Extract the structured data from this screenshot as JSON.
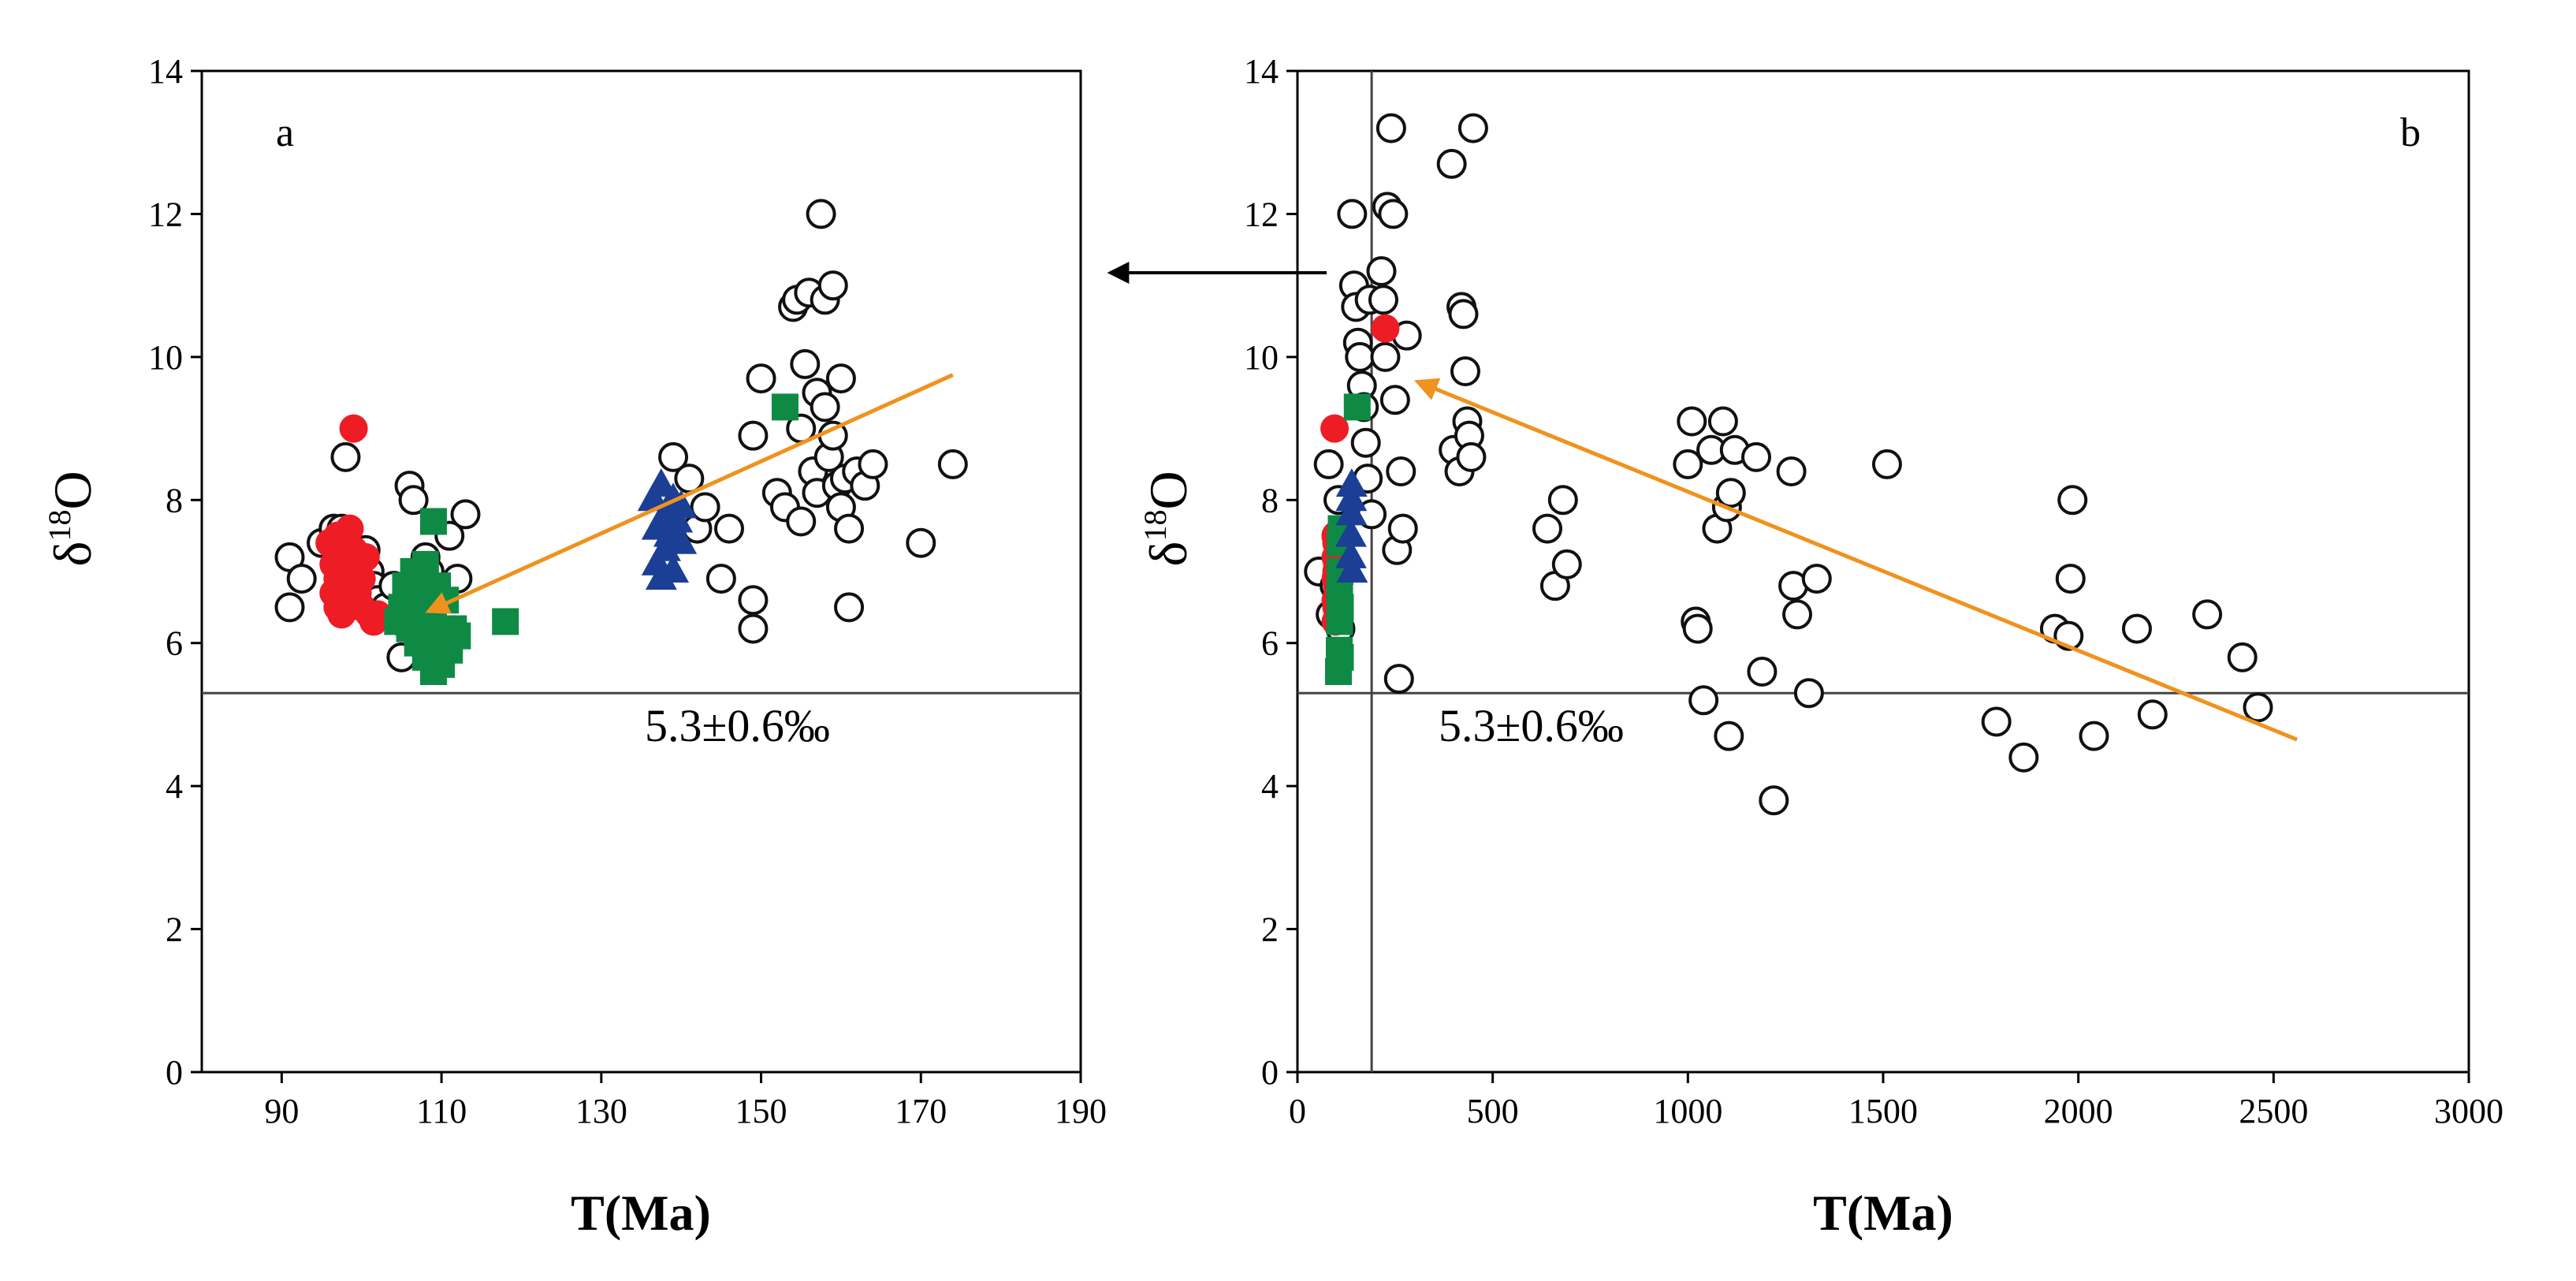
{
  "figure": {
    "reference_label": "5.3±0.6‰",
    "y_label_main": "δ",
    "y_label_sup": "18",
    "y_label_tail": "O",
    "colors": {
      "axis": "#000000",
      "ref_line": "#444444",
      "trend_arrow": "#F0921E",
      "open_circle_stroke": "#111111",
      "red_circle": "#EE1C25",
      "green_square": "#0E8A45",
      "blue_triangle": "#1B3F94"
    }
  },
  "chart_data": [
    {
      "type": "scatter",
      "panel": "a",
      "title": "",
      "xlabel": "T(Ma)",
      "ylabel": "δ18O",
      "xlim": [
        80,
        190
      ],
      "ylim": [
        0,
        14
      ],
      "xticks": [
        90,
        110,
        130,
        150,
        170,
        190
      ],
      "yticks": [
        0,
        2,
        4,
        6,
        8,
        10,
        12,
        14
      ],
      "reference_line": {
        "y": 5.3,
        "label": "5.3±0.6‰"
      },
      "trend_arrow": {
        "from": [
          174,
          9.75
        ],
        "to": [
          108.5,
          6.45
        ]
      },
      "series": [
        {
          "name": "open circles",
          "marker": "open-circle",
          "points": [
            [
              91,
              7.2
            ],
            [
              91,
              6.5
            ],
            [
              92.5,
              6.9
            ],
            [
              95,
              7.4
            ],
            [
              96.5,
              7.6
            ],
            [
              97.5,
              7.6
            ],
            [
              98,
              8.6
            ],
            [
              98,
              6.6
            ],
            [
              99,
              7.0
            ],
            [
              100.5,
              7.3
            ],
            [
              101,
              7.0
            ],
            [
              101.5,
              6.8
            ],
            [
              102,
              6.6
            ],
            [
              103,
              6.5
            ],
            [
              104,
              6.8
            ],
            [
              105,
              6.3
            ],
            [
              105,
              5.8
            ],
            [
              106,
              8.2
            ],
            [
              106.5,
              8.0
            ],
            [
              107,
              6.5
            ],
            [
              107.5,
              6.2
            ],
            [
              108,
              7.2
            ],
            [
              108.5,
              7.0
            ],
            [
              109,
              6.7
            ],
            [
              111,
              7.5
            ],
            [
              112,
              6.9
            ],
            [
              113,
              7.8
            ],
            [
              139,
              8.6
            ],
            [
              141,
              8.3
            ],
            [
              142,
              7.6
            ],
            [
              143,
              7.9
            ],
            [
              145,
              6.9
            ],
            [
              146,
              7.6
            ],
            [
              149,
              6.6
            ],
            [
              149,
              6.2
            ],
            [
              149,
              8.9
            ],
            [
              150,
              9.7
            ],
            [
              152,
              8.1
            ],
            [
              153,
              7.9
            ],
            [
              154,
              10.7
            ],
            [
              154.5,
              10.8
            ],
            [
              155,
              7.7
            ],
            [
              155,
              9.0
            ],
            [
              155.5,
              9.9
            ],
            [
              156,
              10.9
            ],
            [
              156.5,
              8.4
            ],
            [
              157,
              8.1
            ],
            [
              157,
              9.5
            ],
            [
              157.5,
              12.0
            ],
            [
              158,
              10.8
            ],
            [
              158,
              9.3
            ],
            [
              158.5,
              8.6
            ],
            [
              159,
              11.0
            ],
            [
              159,
              8.9
            ],
            [
              159.5,
              8.2
            ],
            [
              160,
              7.9
            ],
            [
              160,
              9.7
            ],
            [
              160.5,
              8.3
            ],
            [
              161,
              7.6
            ],
            [
              161,
              6.5
            ],
            [
              162,
              8.4
            ],
            [
              163,
              8.2
            ],
            [
              164,
              8.5
            ],
            [
              170,
              7.4
            ],
            [
              174,
              8.5
            ]
          ]
        },
        {
          "name": "red circles",
          "marker": "filled-circle",
          "points": [
            [
              96,
              7.4
            ],
            [
              96.5,
              7.1
            ],
            [
              96.5,
              6.7
            ],
            [
              97,
              7.5
            ],
            [
              97,
              6.9
            ],
            [
              97,
              6.5
            ],
            [
              97.5,
              7.3
            ],
            [
              97.5,
              6.4
            ],
            [
              98,
              7.2
            ],
            [
              98,
              6.8
            ],
            [
              98,
              6.5
            ],
            [
              98.5,
              7.6
            ],
            [
              98.5,
              7.0
            ],
            [
              99,
              7.3
            ],
            [
              99,
              6.6
            ],
            [
              99,
              9.0
            ],
            [
              99.5,
              7.1
            ],
            [
              99.5,
              6.7
            ],
            [
              100,
              6.9
            ],
            [
              100,
              6.5
            ],
            [
              100.5,
              7.2
            ],
            [
              101,
              6.4
            ],
            [
              101.5,
              6.3
            ],
            [
              102,
              6.4
            ]
          ]
        },
        {
          "name": "green squares",
          "marker": "filled-square",
          "points": [
            [
              104.5,
              6.3
            ],
            [
              105,
              6.5
            ],
            [
              105.5,
              6.8
            ],
            [
              106,
              6.2
            ],
            [
              106.5,
              7.0
            ],
            [
              107,
              6.4
            ],
            [
              107,
              6.0
            ],
            [
              107.5,
              6.7
            ],
            [
              107.5,
              6.1
            ],
            [
              108,
              7.1
            ],
            [
              108,
              5.8
            ],
            [
              108.5,
              6.5
            ],
            [
              108.5,
              6.0
            ],
            [
              109,
              7.7
            ],
            [
              109,
              6.3
            ],
            [
              109,
              5.6
            ],
            [
              109.5,
              6.8
            ],
            [
              110,
              6.2
            ],
            [
              110,
              5.7
            ],
            [
              110.5,
              6.6
            ],
            [
              111,
              5.9
            ],
            [
              111.5,
              6.2
            ],
            [
              112,
              6.1
            ],
            [
              118,
              6.3
            ],
            [
              153,
              9.3
            ]
          ]
        },
        {
          "name": "blue triangles",
          "marker": "filled-triangle",
          "points": [
            [
              136.5,
              8.0
            ],
            [
              137,
              7.6
            ],
            [
              137,
              7.1
            ],
            [
              137.5,
              8.2
            ],
            [
              137.5,
              6.9
            ],
            [
              138,
              7.8
            ],
            [
              138,
              7.3
            ],
            [
              138.5,
              7.5
            ],
            [
              139,
              8.0
            ],
            [
              139,
              7.0
            ],
            [
              139.5,
              7.7
            ],
            [
              140,
              7.4
            ],
            [
              140,
              7.9
            ]
          ]
        }
      ]
    },
    {
      "type": "scatter",
      "panel": "b",
      "title": "",
      "xlabel": "T(Ma)",
      "ylabel": "δ18O",
      "xlim": [
        0,
        3000
      ],
      "ylim": [
        0,
        14
      ],
      "xticks": [
        0,
        500,
        1000,
        1500,
        2000,
        2500,
        3000
      ],
      "yticks": [
        0,
        2,
        4,
        6,
        8,
        10,
        12,
        14
      ],
      "reference_line": {
        "y": 5.3,
        "label": "5.3±0.6‰"
      },
      "vertical_line": {
        "x": 190
      },
      "trend_arrow": {
        "from": [
          2560,
          4.65
        ],
        "to": [
          310,
          9.65
        ]
      },
      "series": [
        {
          "name": "open circles",
          "marker": "open-circle",
          "points": [
            [
              55,
              7.0
            ],
            [
              80,
              8.5
            ],
            [
              85,
              6.4
            ],
            [
              95,
              6.8
            ],
            [
              100,
              7.5
            ],
            [
              105,
              8.0
            ],
            [
              110,
              6.2
            ],
            [
              140,
              12.0
            ],
            [
              145,
              11.0
            ],
            [
              150,
              10.7
            ],
            [
              155,
              10.2
            ],
            [
              160,
              10.0
            ],
            [
              165,
              9.6
            ],
            [
              170,
              9.3
            ],
            [
              175,
              8.8
            ],
            [
              180,
              8.3
            ],
            [
              185,
              10.8
            ],
            [
              190,
              7.8
            ],
            [
              215,
              11.2
            ],
            [
              220,
              10.8
            ],
            [
              225,
              10.0
            ],
            [
              230,
              12.1
            ],
            [
              240,
              13.2
            ],
            [
              245,
              12.0
            ],
            [
              250,
              9.4
            ],
            [
              255,
              7.3
            ],
            [
              260,
              5.5
            ],
            [
              265,
              8.4
            ],
            [
              270,
              7.6
            ],
            [
              280,
              10.3
            ],
            [
              395,
              12.7
            ],
            [
              400,
              8.7
            ],
            [
              415,
              8.4
            ],
            [
              420,
              10.7
            ],
            [
              425,
              10.6
            ],
            [
              430,
              9.8
            ],
            [
              435,
              9.1
            ],
            [
              440,
              8.9
            ],
            [
              445,
              8.6
            ],
            [
              450,
              13.2
            ],
            [
              640,
              7.6
            ],
            [
              660,
              6.8
            ],
            [
              680,
              8.0
            ],
            [
              690,
              7.1
            ],
            [
              1000,
              8.5
            ],
            [
              1010,
              9.1
            ],
            [
              1020,
              6.3
            ],
            [
              1025,
              6.2
            ],
            [
              1040,
              5.2
            ],
            [
              1060,
              8.7
            ],
            [
              1075,
              7.6
            ],
            [
              1090,
              9.1
            ],
            [
              1100,
              7.9
            ],
            [
              1105,
              4.7
            ],
            [
              1110,
              8.1
            ],
            [
              1120,
              8.7
            ],
            [
              1175,
              8.6
            ],
            [
              1190,
              5.6
            ],
            [
              1220,
              3.8
            ],
            [
              1265,
              8.4
            ],
            [
              1270,
              6.8
            ],
            [
              1280,
              6.4
            ],
            [
              1310,
              5.3
            ],
            [
              1330,
              6.9
            ],
            [
              1510,
              8.5
            ],
            [
              1790,
              4.9
            ],
            [
              1860,
              4.4
            ],
            [
              1940,
              6.2
            ],
            [
              1975,
              6.1
            ],
            [
              1980,
              6.9
            ],
            [
              1985,
              8.0
            ],
            [
              2040,
              4.7
            ],
            [
              2150,
              6.2
            ],
            [
              2190,
              5.0
            ],
            [
              2330,
              6.4
            ],
            [
              2420,
              5.8
            ],
            [
              2460,
              5.1
            ]
          ]
        },
        {
          "name": "red circles",
          "marker": "filled-circle",
          "points": [
            [
              98,
              6.3
            ],
            [
              98,
              6.6
            ],
            [
              98,
              6.9
            ],
            [
              98,
              7.2
            ],
            [
              98,
              7.5
            ],
            [
              100,
              6.5
            ],
            [
              100,
              7.0
            ],
            [
              100,
              7.4
            ],
            [
              102,
              6.8
            ],
            [
              102,
              7.1
            ],
            [
              95,
              9.0
            ],
            [
              225,
              10.4
            ]
          ]
        },
        {
          "name": "green squares",
          "marker": "filled-square",
          "points": [
            [
              105,
              5.6
            ],
            [
              107,
              5.9
            ],
            [
              108,
              6.3
            ],
            [
              108,
              6.7
            ],
            [
              109,
              7.0
            ],
            [
              109,
              7.4
            ],
            [
              110,
              5.8
            ],
            [
              110,
              6.5
            ],
            [
              112,
              7.6
            ],
            [
              153,
              9.3
            ]
          ]
        },
        {
          "name": "blue triangles",
          "marker": "filled-triangle",
          "points": [
            [
              137,
              7.2
            ],
            [
              137,
              7.5
            ],
            [
              138,
              7.8
            ],
            [
              138,
              8.0
            ],
            [
              139,
              8.2
            ],
            [
              140,
              7.0
            ]
          ]
        }
      ]
    }
  ]
}
